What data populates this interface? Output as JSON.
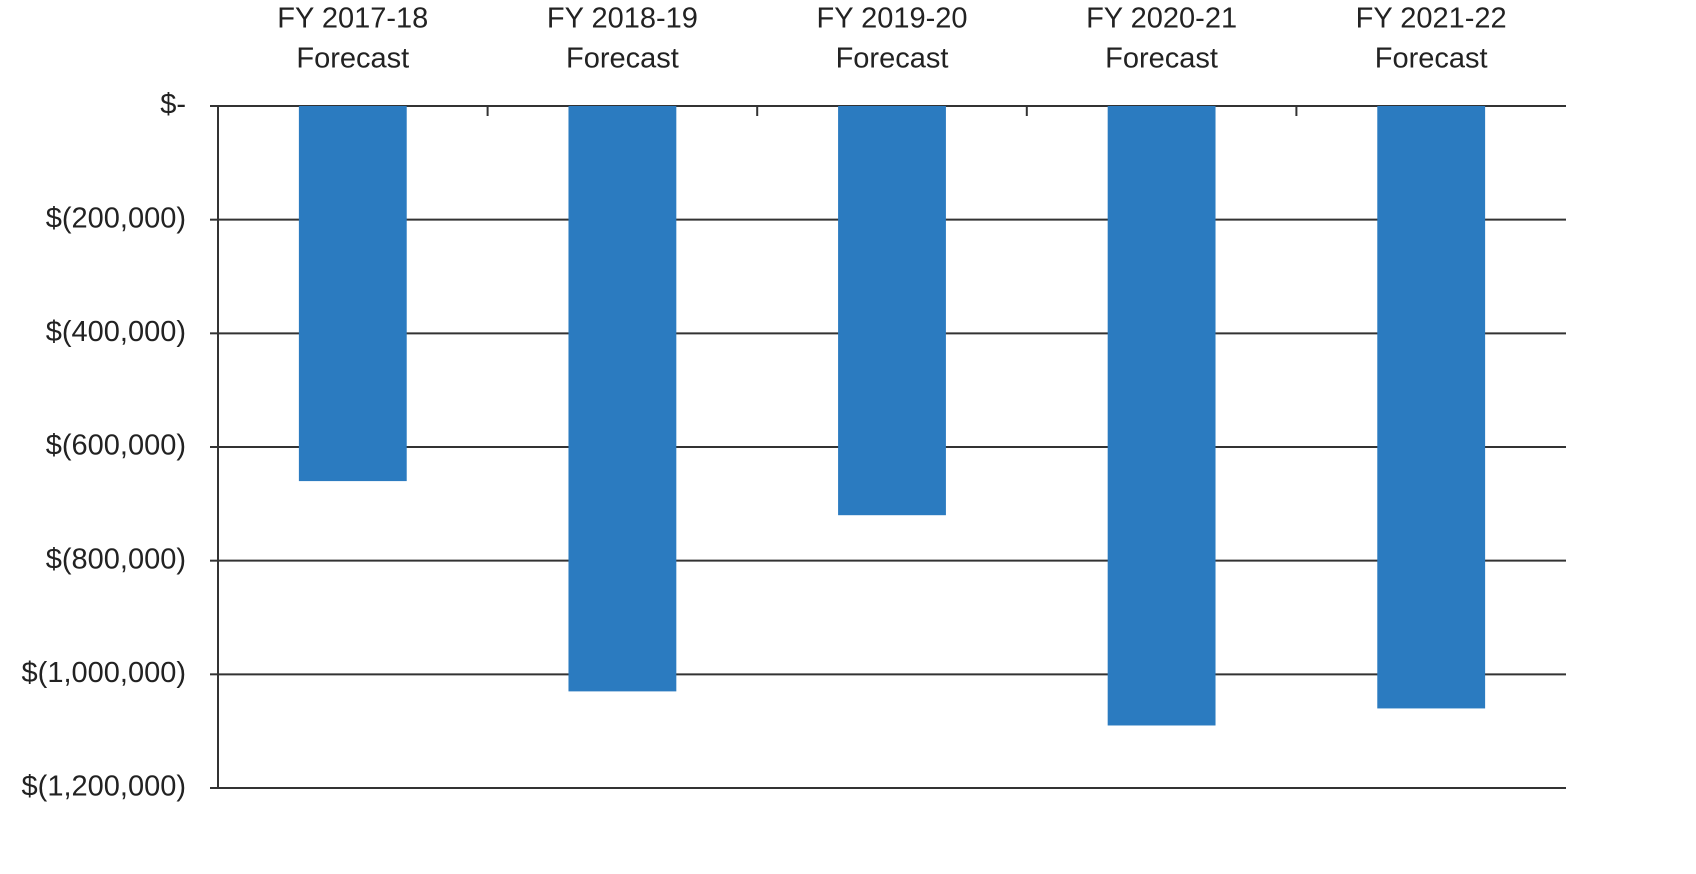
{
  "chart_data": {
    "type": "bar",
    "categories": [
      [
        "FY 2017-18",
        "Forecast"
      ],
      [
        "FY 2018-19",
        "Forecast"
      ],
      [
        "FY 2019-20",
        "Forecast"
      ],
      [
        "FY 2020-21",
        "Forecast"
      ],
      [
        "FY 2021-22",
        "Forecast"
      ]
    ],
    "values": [
      -660000,
      -1030000,
      -720000,
      -1090000,
      -1060000
    ],
    "color": "#2b7bc0",
    "ylim": [
      -1200000,
      0
    ],
    "yticks": [
      {
        "value": 0,
        "label": "$-"
      },
      {
        "value": -200000,
        "label": "$(200,000)"
      },
      {
        "value": -400000,
        "label": "$(400,000)"
      },
      {
        "value": -600000,
        "label": "$(600,000)"
      },
      {
        "value": -800000,
        "label": "$(800,000)"
      },
      {
        "value": -1000000,
        "label": "$(1,000,000)"
      },
      {
        "value": -1200000,
        "label": "$(1,200,000)"
      }
    ],
    "grid": true
  }
}
